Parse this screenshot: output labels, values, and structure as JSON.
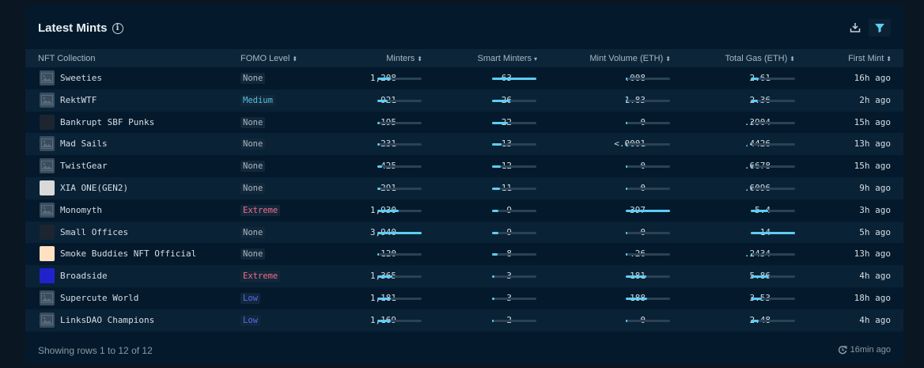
{
  "header": {
    "title": "Latest Mints",
    "info_icon": "info-icon",
    "download_icon": "download-icon",
    "filter_icon": "filter-icon"
  },
  "columns": [
    {
      "label": "NFT Collection",
      "sortable": false
    },
    {
      "label": "FOMO Level",
      "sort": "none"
    },
    {
      "label": "Minters",
      "sort": "none"
    },
    {
      "label": "Smart Minters",
      "sort": "desc"
    },
    {
      "label": "Mint Volume (ETH)",
      "sort": "none"
    },
    {
      "label": "Total Gas (ETH)",
      "sort": "none"
    },
    {
      "label": "First Mint",
      "sort": "none"
    }
  ],
  "colors": {
    "bar_fill": "#5dcdf2",
    "bar_track": "#2b4255",
    "fomo_none": "#a9b7c3",
    "fomo_medium": "#4fc3e6",
    "fomo_extreme": "#f06b8b",
    "fomo_low": "#4f6bff"
  },
  "rows": [
    {
      "name": "Sweeties",
      "thumb": "placeholder",
      "fomo": "None",
      "minters": "1,208",
      "minters_v": 1208,
      "smart": "63",
      "smart_v": 63,
      "volume": ".008",
      "volume_v": 0.008,
      "gas": "2.61",
      "gas_v": 2.61,
      "first": "16h ago"
    },
    {
      "name": "RektWTF",
      "thumb": "placeholder",
      "fomo": "Medium",
      "minters": "921",
      "minters_v": 921,
      "smart": "26",
      "smart_v": 26,
      "volume": "1.83",
      "volume_v": 1.83,
      "gas": "2.36",
      "gas_v": 2.36,
      "first": "2h ago"
    },
    {
      "name": "Bankrupt SBF Punks",
      "thumb": "image",
      "fomo": "None",
      "minters": "195",
      "minters_v": 195,
      "smart": "22",
      "smart_v": 22,
      "volume": "0",
      "volume_v": 0,
      "gas": ".3904",
      "gas_v": 0.3904,
      "first": "15h ago"
    },
    {
      "name": "Mad Sails",
      "thumb": "placeholder",
      "fomo": "None",
      "minters": "231",
      "minters_v": 231,
      "smart": "13",
      "smart_v": 13,
      "volume": "<.0001",
      "volume_v": 0.0001,
      "gas": ".4426",
      "gas_v": 0.4426,
      "first": "13h ago"
    },
    {
      "name": "TwistGear",
      "thumb": "placeholder",
      "fomo": "None",
      "minters": "425",
      "minters_v": 425,
      "smart": "12",
      "smart_v": 12,
      "volume": "0",
      "volume_v": 0,
      "gas": ".6678",
      "gas_v": 0.6678,
      "first": "15h ago"
    },
    {
      "name": "XIA ONE(GEN2)",
      "thumb": "image",
      "fomo": "None",
      "minters": "291",
      "minters_v": 291,
      "smart": "11",
      "smart_v": 11,
      "volume": "0",
      "volume_v": 0,
      "gas": ".6096",
      "gas_v": 0.6096,
      "first": "9h ago"
    },
    {
      "name": "Monomyth",
      "thumb": "placeholder",
      "fomo": "Extreme",
      "minters": "1,930",
      "minters_v": 1930,
      "smart": "9",
      "smart_v": 9,
      "volume": "397",
      "volume_v": 397,
      "gas": "5.4",
      "gas_v": 5.4,
      "first": "3h ago"
    },
    {
      "name": "Small Offices",
      "thumb": "image",
      "fomo": "None",
      "minters": "3,940",
      "minters_v": 3940,
      "smart": "9",
      "smart_v": 9,
      "volume": "0",
      "volume_v": 0,
      "gas": "14",
      "gas_v": 14,
      "first": "5h ago"
    },
    {
      "name": "Smoke Buddies NFT Official",
      "thumb": "image",
      "fomo": "None",
      "minters": "120",
      "minters_v": 120,
      "smart": "8",
      "smart_v": 8,
      "volume": ".26",
      "volume_v": 0.26,
      "gas": ".2434",
      "gas_v": 0.2434,
      "first": "13h ago"
    },
    {
      "name": "Broadside",
      "thumb": "image",
      "fomo": "Extreme",
      "minters": "1,365",
      "minters_v": 1365,
      "smart": "3",
      "smart_v": 3,
      "volume": "181",
      "volume_v": 181,
      "gas": "5.86",
      "gas_v": 5.86,
      "first": "4h ago"
    },
    {
      "name": "Supercute World",
      "thumb": "placeholder",
      "fomo": "Low",
      "minters": "1,181",
      "minters_v": 1181,
      "smart": "3",
      "smart_v": 3,
      "volume": "188",
      "volume_v": 188,
      "gas": "3.53",
      "gas_v": 3.53,
      "first": "18h ago"
    },
    {
      "name": "LinksDAO Champions",
      "thumb": "placeholder",
      "fomo": "Low",
      "minters": "1,169",
      "minters_v": 1169,
      "smart": "2",
      "smart_v": 2,
      "volume": "0",
      "volume_v": 0,
      "gas": "2.48",
      "gas_v": 2.48,
      "first": "4h ago"
    }
  ],
  "footer": {
    "pagination": "Showing rows 1 to 12 of 12",
    "updated": "16min ago",
    "updated_icon": "clock-refresh-icon"
  }
}
